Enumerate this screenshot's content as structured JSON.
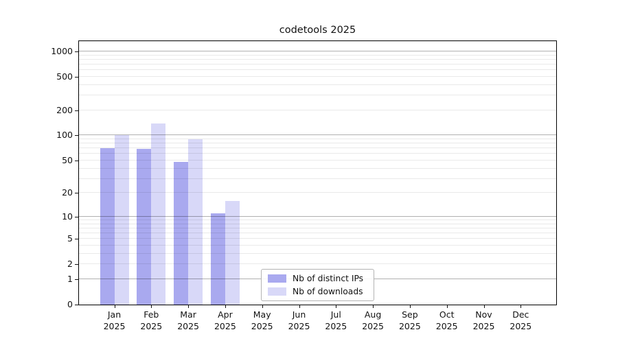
{
  "chart_data": {
    "type": "bar",
    "title": "codetools 2025",
    "categories": [
      "Jan 2025",
      "Feb 2025",
      "Mar 2025",
      "Apr 2025",
      "May 2025",
      "Jun 2025",
      "Jul 2025",
      "Aug 2025",
      "Sep 2025",
      "Oct 2025",
      "Nov 2025",
      "Dec 2025"
    ],
    "series": [
      {
        "name": "Nb of distinct IPs",
        "color": "#a9a9ef",
        "values": [
          70,
          69,
          48,
          11,
          0,
          0,
          0,
          0,
          0,
          0,
          0,
          0
        ]
      },
      {
        "name": "Nb of downloads",
        "color": "#d8d8f8",
        "values": [
          100,
          140,
          90,
          16,
          0,
          0,
          0,
          0,
          0,
          0,
          0,
          0
        ]
      }
    ],
    "y_axis": {
      "scale": "log1p",
      "ticks": [
        0,
        1,
        2,
        5,
        10,
        20,
        50,
        100,
        200,
        500,
        1000
      ],
      "top_value": 1300
    },
    "x_axis": {
      "unit": "month"
    },
    "grid": "on",
    "legend_position": "inside-bottom-center",
    "colors": {
      "major_grid": "#b0b0b0",
      "minor_grid": "#e9e9e9",
      "axis": "#000000"
    }
  }
}
